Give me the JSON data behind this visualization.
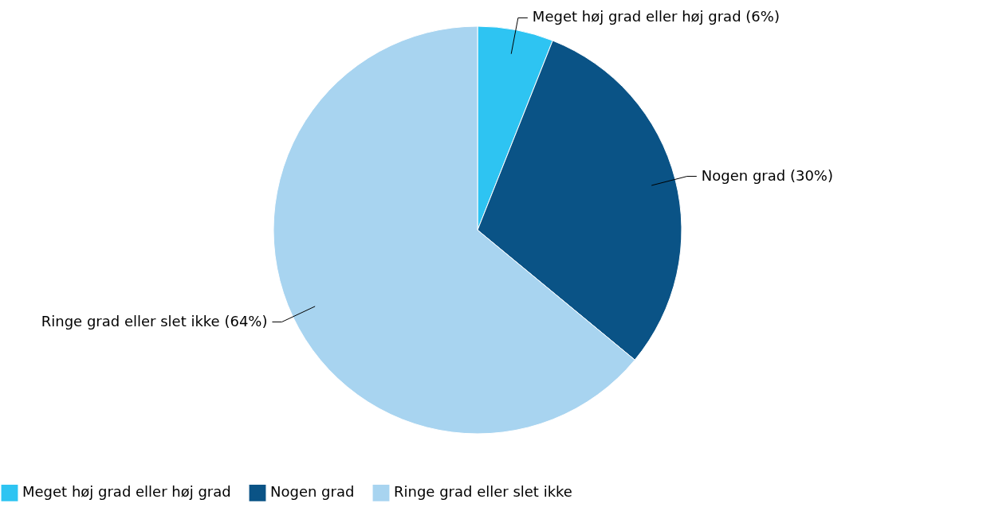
{
  "chart_data": {
    "type": "pie",
    "categories": [
      "Meget høj grad eller høj grad",
      "Nogen grad",
      "Ringe grad eller slet ikke"
    ],
    "values": [
      6,
      30,
      64
    ],
    "colors": [
      "#2ec4f2",
      "#0a5386",
      "#a8d4f0"
    ],
    "value_labels": [
      "Meget høj grad eller høj grad (6%)",
      "Nogen grad (30%)",
      "Ringe grad eller slet ikke (64%)"
    ],
    "legend": "bottom"
  }
}
